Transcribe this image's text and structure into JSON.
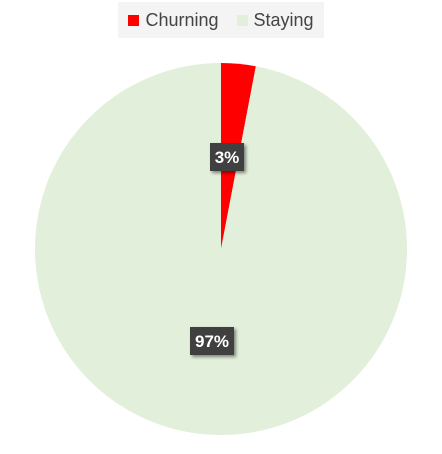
{
  "chart_data": {
    "type": "pie",
    "categories": [
      "Churning",
      "Staying"
    ],
    "values": [
      3,
      97
    ],
    "data_labels": [
      "3%",
      "97%"
    ],
    "colors": [
      "#ff0000",
      "#e2efda"
    ],
    "legend_position": "top",
    "start_angle_deg": 0,
    "direction": "clockwise"
  },
  "legend": {
    "items": [
      {
        "label": "Churning",
        "color": "#ff0000"
      },
      {
        "label": "Staying",
        "color": "#e2efda"
      }
    ]
  },
  "label_box_color": "#404040"
}
